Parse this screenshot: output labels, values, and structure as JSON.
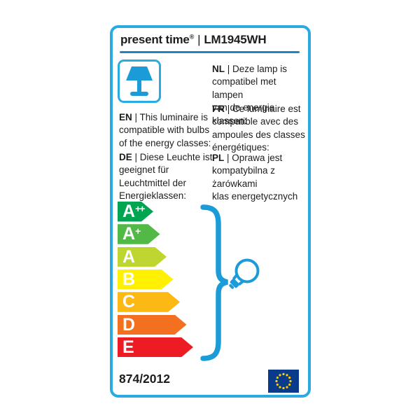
{
  "header": {
    "brand": "present time",
    "registered_mark": "®",
    "separator": "|",
    "model": "LM1945WH"
  },
  "pictogram": {
    "lamp_icon": "table-lamp-icon",
    "bulb_icon": "light-bulb-icon",
    "brace_icon": "curly-brace"
  },
  "descriptions": [
    {
      "lang": "EN",
      "text": " | This luminaire is\ncompatible with bulbs\nof the energy classes:"
    },
    {
      "lang": "DE",
      "text": " | Diese Leuchte ist\ngeeignet für\nLeuchtmittel der\nEnergieklassen:"
    },
    {
      "lang": "NL",
      "text": " | Deze lamp is\ncompatibel met lampen\nvan de energie klassen:"
    },
    {
      "lang": "FR",
      "text": " | Ce luminaire est\ncompatible avec des\nampoules des classes\nénergétiques:"
    },
    {
      "lang": "PL",
      "text": " | Oprawa jest\nkompatybilna z\nżarówkami\nklas energetycznych"
    }
  ],
  "energy_classes": [
    {
      "label": "A",
      "sup": "++",
      "color": "#00a551"
    },
    {
      "label": "A",
      "sup": "+",
      "color": "#52b947"
    },
    {
      "label": "A",
      "sup": "",
      "color": "#bed62f"
    },
    {
      "label": "B",
      "sup": "",
      "color": "#fff101"
    },
    {
      "label": "C",
      "sup": "",
      "color": "#fdb913"
    },
    {
      "label": "D",
      "sup": "",
      "color": "#f37021"
    },
    {
      "label": "E",
      "sup": "",
      "color": "#ed1c24"
    }
  ],
  "footer": {
    "regulation": "874/2012",
    "flag_icon": "eu-flag"
  },
  "colors": {
    "accent_blue": "#29abe2",
    "graphic_blue": "#1b9cd8",
    "divider_blue": "#1b85c6",
    "text": "#1d1d1b",
    "flag_blue": "#0a3a8a",
    "star_yellow": "#ffcc00"
  }
}
